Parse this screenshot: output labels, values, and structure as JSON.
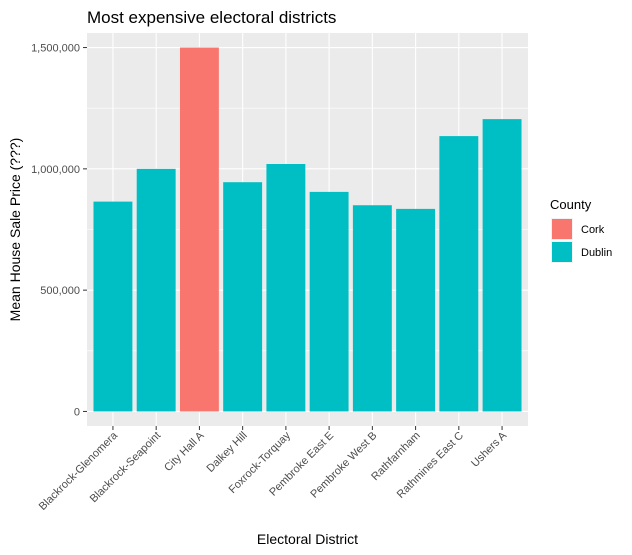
{
  "chart_data": {
    "type": "bar",
    "title": "Most expensive electoral districts",
    "xlabel": "Electoral District",
    "ylabel": "Mean House Sale Price (???)",
    "categories": [
      "Blackrock-Glenomera",
      "Blackrock-Seapoint",
      "City Hall A",
      "Dalkey Hill",
      "Foxrock-Torquay",
      "Pembroke East E",
      "Pembroke West B",
      "Rathfarnham",
      "Rathmines East C",
      "Ushers A"
    ],
    "values": [
      865000,
      1000000,
      1500000,
      945000,
      1020000,
      905000,
      850000,
      835000,
      1135000,
      1205000
    ],
    "fill_group": [
      "Dublin",
      "Dublin",
      "Cork",
      "Dublin",
      "Dublin",
      "Dublin",
      "Dublin",
      "Dublin",
      "Dublin",
      "Dublin"
    ],
    "ylim": [
      -60000,
      1560000
    ],
    "yticks": [
      0,
      500000,
      1000000,
      1500000
    ],
    "ytick_labels": [
      "0",
      "500,000",
      "1,000,000",
      "1,500,000"
    ],
    "grid": true,
    "legend": {
      "title": "County",
      "position": "right",
      "entries": [
        {
          "label": "Cork",
          "color": "#F8766D"
        },
        {
          "label": "Dublin",
          "color": "#00BFC4"
        }
      ]
    },
    "panel_background": "#EBEBEB",
    "grid_color": "#FFFFFF"
  }
}
